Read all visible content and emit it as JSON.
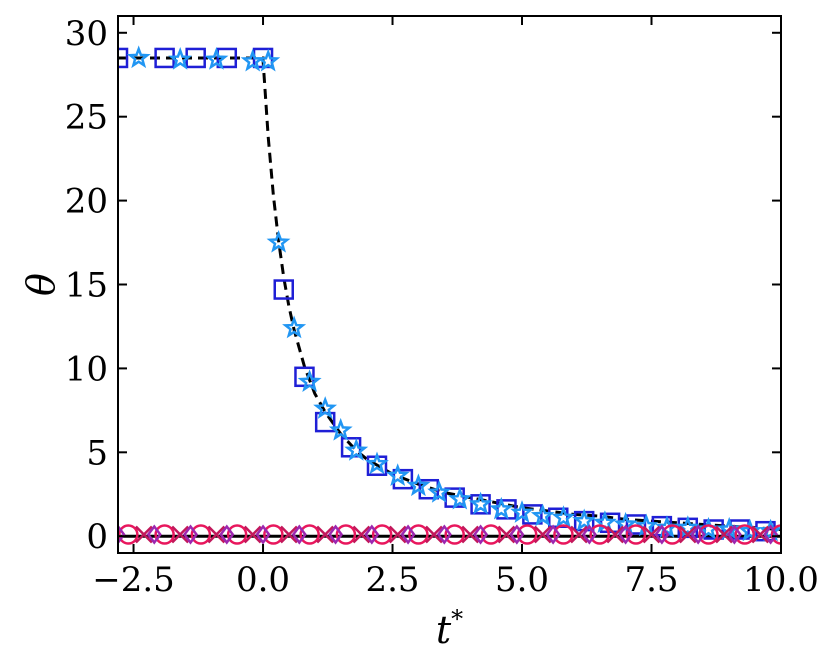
{
  "chart_data": {
    "type": "line",
    "title": "",
    "xlabel": "t",
    "xlabel_superscript": "*",
    "ylabel": "θ",
    "xlim": [
      -2.8,
      10.0
    ],
    "ylim": [
      -1.0,
      31.0
    ],
    "xticks": [
      -2.5,
      0.0,
      2.5,
      5.0,
      7.5,
      10.0
    ],
    "xtick_labels": [
      "−2.5",
      "0.0",
      "2.5",
      "5.0",
      "7.5",
      "10.0"
    ],
    "yticks": [
      0,
      5,
      10,
      15,
      20,
      25,
      30
    ],
    "ytick_labels": [
      "0",
      "5",
      "10",
      "15",
      "20",
      "25",
      "30"
    ],
    "grid": false,
    "tick_direction": "in",
    "series": [
      {
        "line": "dashed",
        "color": "#000000",
        "x": [
          -2.8,
          -2.0,
          -1.0,
          0.0,
          0.0,
          0.1,
          0.2,
          0.3,
          0.4,
          0.5,
          0.6,
          0.8,
          1.0,
          1.2,
          1.5,
          1.8,
          2.0,
          2.5,
          3.0,
          3.5,
          4.0,
          4.5,
          5.0,
          5.5,
          6.0,
          6.5,
          7.0,
          7.5,
          8.0,
          8.5,
          9.0,
          9.5,
          10.0
        ],
        "y": [
          28.5,
          28.5,
          28.5,
          28.5,
          28.4,
          23.8,
          20.3,
          17.6,
          15.4,
          13.7,
          12.3,
          10.1,
          8.5,
          7.4,
          6.1,
          5.1,
          4.6,
          3.7,
          3.1,
          2.6,
          2.3,
          2.0,
          1.7,
          1.5,
          1.3,
          1.2,
          1.0,
          0.9,
          0.8,
          0.7,
          0.6,
          0.5,
          0.4
        ]
      },
      {
        "line": "solid",
        "color": "#000000",
        "x": [
          -2.8,
          10.0
        ],
        "y": [
          0.0,
          0.0
        ]
      },
      {
        "marker": "square",
        "color": "#1f1fd6",
        "x": [
          -2.8,
          -1.9,
          -1.3,
          -0.7,
          0.0,
          0.4,
          0.8,
          1.2,
          1.7,
          2.2,
          2.7,
          3.2,
          3.7,
          4.2,
          4.7,
          5.2,
          5.7,
          6.2,
          6.7,
          7.2,
          7.7,
          8.2,
          8.7,
          9.2,
          9.7
        ],
        "y": [
          28.5,
          28.5,
          28.5,
          28.5,
          28.5,
          14.7,
          9.5,
          6.8,
          5.3,
          4.2,
          3.4,
          2.8,
          2.3,
          1.9,
          1.6,
          1.3,
          1.1,
          0.9,
          0.8,
          0.7,
          0.6,
          0.5,
          0.4,
          0.4,
          0.3
        ]
      },
      {
        "marker": "star",
        "color": "#2196f3",
        "x": [
          -2.4,
          -1.6,
          -0.9,
          -0.2,
          0.1,
          0.3,
          0.6,
          0.9,
          1.2,
          1.5,
          1.8,
          2.2,
          2.6,
          3.0,
          3.4,
          3.8,
          4.2,
          4.6,
          5.0,
          5.4,
          5.8,
          6.2,
          6.6,
          7.0,
          7.4,
          7.8,
          8.2,
          8.6,
          9.0,
          9.4,
          9.8
        ],
        "y": [
          28.5,
          28.4,
          28.4,
          28.3,
          28.3,
          17.5,
          12.4,
          9.2,
          7.6,
          6.3,
          5.1,
          4.3,
          3.6,
          3.0,
          2.6,
          2.2,
          1.9,
          1.6,
          1.4,
          1.2,
          1.1,
          0.9,
          0.8,
          0.7,
          0.6,
          0.5,
          0.5,
          0.4,
          0.4,
          0.3,
          0.3
        ]
      },
      {
        "marker": "circle",
        "color": "#e8175d",
        "x": [
          -2.6,
          -1.9,
          -1.2,
          -0.5,
          0.2,
          0.9,
          1.6,
          2.3,
          3.0,
          3.7,
          4.4,
          5.1,
          5.8,
          6.5,
          7.2,
          7.9,
          8.6,
          9.3,
          10.0
        ],
        "y": [
          0.1,
          0.1,
          0.1,
          0.1,
          0.1,
          0.1,
          0.1,
          0.1,
          0.1,
          0.1,
          0.1,
          0.1,
          0.1,
          0.1,
          0.1,
          0.1,
          0.1,
          0.1,
          0.1
        ]
      },
      {
        "marker": "x",
        "color": "#c2185b",
        "x": [
          -2.3,
          -1.6,
          -0.9,
          -0.2,
          0.5,
          1.2,
          1.9,
          2.6,
          3.3,
          4.0,
          4.7,
          5.4,
          6.1,
          6.8,
          7.5,
          8.2,
          8.9,
          9.6
        ],
        "y": [
          0.1,
          0.1,
          0.1,
          0.1,
          0.1,
          0.1,
          0.1,
          0.1,
          0.1,
          0.1,
          0.1,
          0.1,
          0.1,
          0.1,
          0.1,
          0.1,
          0.1,
          0.1
        ]
      },
      {
        "marker": "diamond",
        "color": "#9c27b0",
        "x": [
          -2.8,
          -2.1,
          -1.4,
          -0.7,
          0.0,
          0.7,
          1.4,
          2.1,
          2.8,
          3.5,
          4.2,
          4.9,
          5.6,
          6.3,
          7.0,
          7.7,
          8.4,
          9.1,
          9.8
        ],
        "y": [
          0.1,
          0.1,
          0.1,
          0.1,
          0.1,
          0.1,
          0.1,
          0.1,
          0.1,
          0.1,
          0.1,
          0.1,
          0.1,
          0.1,
          0.1,
          0.1,
          0.1,
          0.1,
          0.1
        ]
      }
    ]
  }
}
